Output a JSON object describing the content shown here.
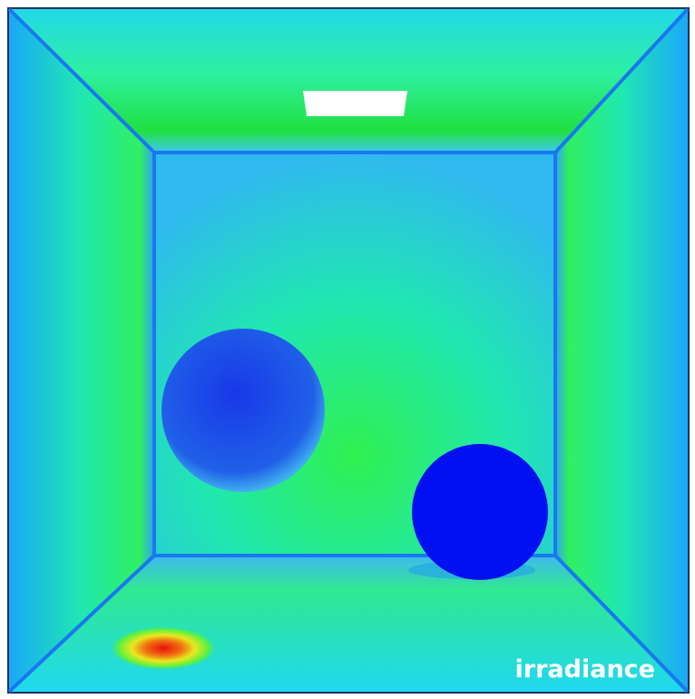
{
  "label": "irradiance"
}
